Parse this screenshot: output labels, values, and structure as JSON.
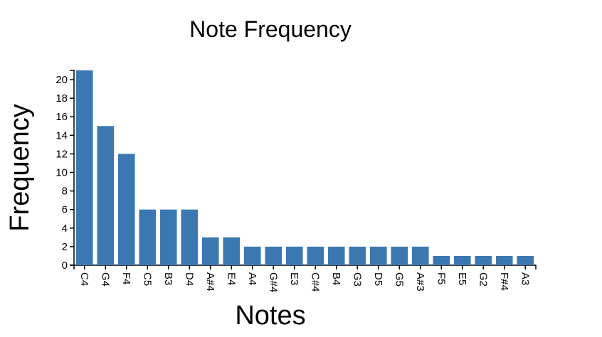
{
  "chart_data": {
    "type": "bar",
    "title": "Note Frequency",
    "xlabel": "Notes",
    "ylabel": "Frequency",
    "categories": [
      "C4",
      "G4",
      "F4",
      "C5",
      "B3",
      "D4",
      "A#4",
      "E4",
      "A4",
      "G#4",
      "E3",
      "C#4",
      "B4",
      "G3",
      "D5",
      "G5",
      "A#3",
      "F5",
      "E5",
      "G2",
      "F#4",
      "A3"
    ],
    "values": [
      21,
      15,
      12,
      6,
      6,
      6,
      3,
      3,
      2,
      2,
      2,
      2,
      2,
      2,
      2,
      2,
      2,
      1,
      1,
      1,
      1,
      1
    ],
    "ylim": [
      0,
      21
    ],
    "yticks": [
      0,
      2,
      4,
      6,
      8,
      10,
      12,
      14,
      16,
      18,
      20
    ],
    "grid": false,
    "bar_color": "#3b78b2"
  }
}
